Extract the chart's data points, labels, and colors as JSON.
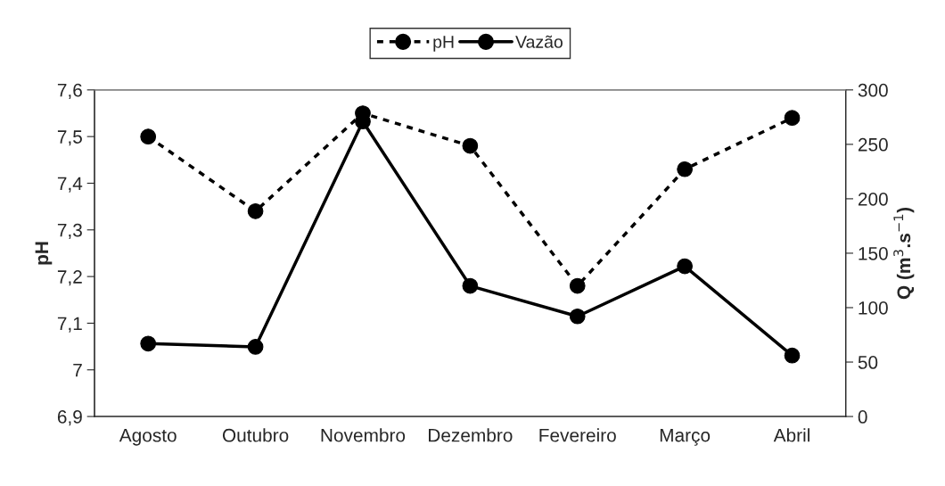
{
  "chart_data": {
    "type": "line",
    "categories": [
      "Agosto",
      "Outubro",
      "Novembro",
      "Dezembro",
      "Fevereiro",
      "Março",
      "Abril"
    ],
    "ylabel": "pH",
    "y2label": "Q (m$^{3}$.s$^{−1}$)",
    "ylim": [
      6.9,
      7.6
    ],
    "yticks": [
      {
        "value": 6.9,
        "label": "6,9"
      },
      7,
      {
        "value": 7.1,
        "label": "7,1"
      },
      {
        "value": 7.2,
        "label": "7,2"
      },
      {
        "value": 7.3,
        "label": "7,3"
      },
      {
        "value": 7.4,
        "label": "7,4"
      },
      {
        "value": 7.5,
        "label": "7,5"
      },
      {
        "value": 7.6,
        "label": "7,6"
      }
    ],
    "y2lim": [
      0,
      300
    ],
    "y2ticks": [
      0,
      50,
      100,
      150,
      200,
      250,
      300
    ],
    "marker": "circle",
    "legend": "top",
    "grid": false,
    "series": [
      {
        "name": "pH",
        "color": "#000000",
        "line_style": "dashed",
        "values": [
          7.5,
          7.34,
          7.55,
          7.48,
          7.18,
          7.43,
          7.54
        ]
      },
      {
        "name": "Vazão",
        "color": "#000000",
        "line_style": "solid",
        "axis": "y2",
        "values": [
          67,
          64,
          271,
          120,
          92,
          138,
          56
        ]
      }
    ]
  }
}
